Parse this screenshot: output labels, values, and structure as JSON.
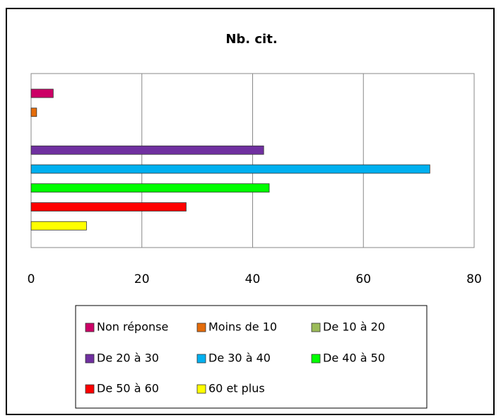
{
  "chart_data": {
    "type": "bar",
    "orientation": "horizontal",
    "title": "Nb. cit.",
    "series": [
      {
        "name": "Non réponse",
        "color": "#cc0066",
        "values": [
          4
        ]
      },
      {
        "name": "Moins de 10",
        "color": "#e46c0a",
        "values": [
          1
        ]
      },
      {
        "name": "De 10 à 20",
        "color": "#9bbb59",
        "values": [
          0
        ]
      },
      {
        "name": "De 20 à 30",
        "color": "#7030a0",
        "values": [
          42
        ]
      },
      {
        "name": "De 30 à 40",
        "color": "#00b0f0",
        "values": [
          72
        ]
      },
      {
        "name": "De 40 à 50",
        "color": "#00ff00",
        "values": [
          43
        ]
      },
      {
        "name": "De 50 à 60",
        "color": "#ff0000",
        "values": [
          28
        ]
      },
      {
        "name": "60 et plus",
        "color": "#ffff00",
        "values": [
          10
        ]
      }
    ],
    "xlim": [
      0,
      80
    ],
    "xticks": [
      0,
      20,
      40,
      60,
      80
    ],
    "grid": true,
    "legend": "bottom"
  }
}
